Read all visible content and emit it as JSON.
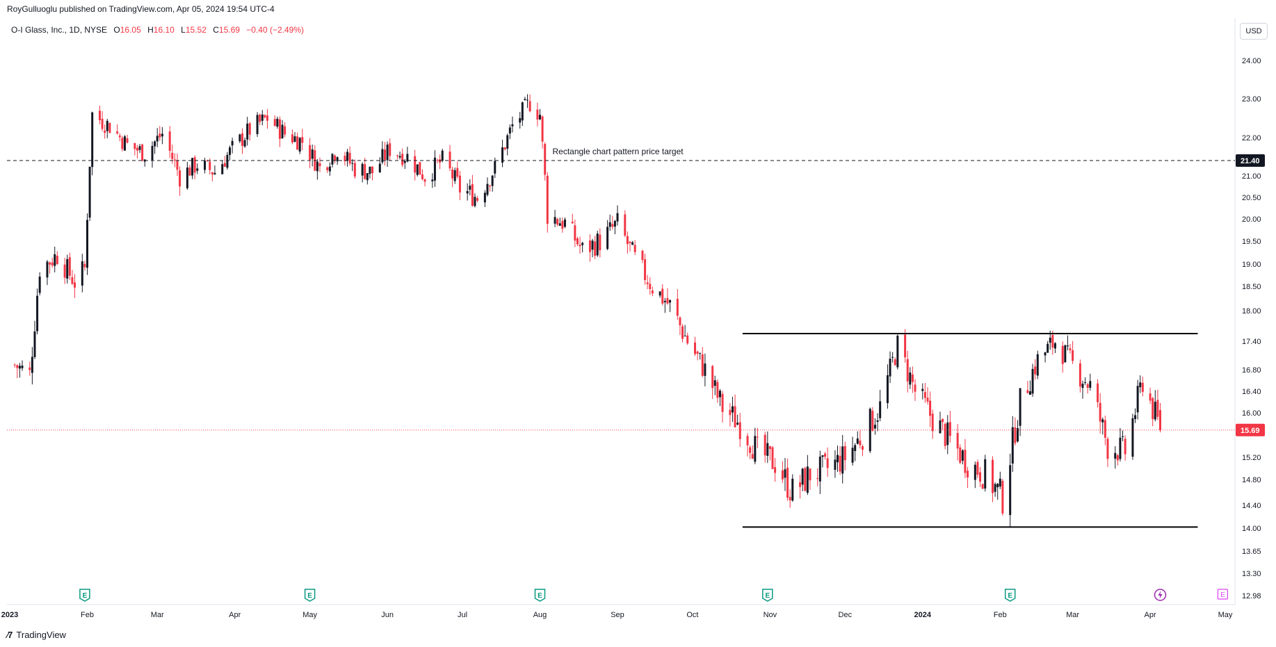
{
  "header": {
    "published": "RoyGulluoglu published on TradingView.com, Apr 05, 2024 19:54 UTC-4"
  },
  "legend": {
    "symbol": "O-I Glass, Inc., 1D, NYSE",
    "o_label": "O",
    "o": "16.05",
    "h_label": "H",
    "h": "16.10",
    "l_label": "L",
    "l": "15.52",
    "c_label": "C",
    "c": "15.69",
    "change": "−0.40 (−2.49%)"
  },
  "currency_button": "USD",
  "footer": {
    "brand": "TradingView"
  },
  "colors": {
    "up": "#131722",
    "down": "#f23645",
    "grid": "#f0f3fa",
    "price_line": "#f23645"
  },
  "icons": [
    "earnings-icon",
    "dividend-lightning-icon",
    "tradingview-logo-icon"
  ],
  "chart_data": {
    "type": "candlestick",
    "y_ticks": [
      "24.00",
      "23.00",
      "22.00",
      "21.00",
      "20.50",
      "20.00",
      "19.50",
      "19.00",
      "18.50",
      "18.00",
      "17.40",
      "16.80",
      "16.40",
      "16.00",
      "15.20",
      "14.80",
      "14.40",
      "14.00",
      "13.65",
      "13.30",
      "12.98"
    ],
    "ylim": [
      12.98,
      24.6
    ],
    "x_ticks": [
      "2023",
      "Feb",
      "Mar",
      "Apr",
      "May",
      "Jun",
      "Jul",
      "Aug",
      "Sep",
      "Oct",
      "Nov",
      "Dec",
      "2024",
      "Feb",
      "Mar",
      "Apr",
      "May"
    ],
    "last_price": "15.69",
    "target_price_label": "21.40",
    "target_price": 21.4,
    "annotation": "Rectangle chart pattern price target",
    "rectangle_top": 17.55,
    "rectangle_bottom": 14.02,
    "earnings_markers": [
      "2023-01-31",
      "2023-05-01",
      "2023-08-01",
      "2023-10-31",
      "2024-02-05"
    ],
    "future_earnings_marker": "2024-04-30",
    "dividend_marker": "2024-04-05",
    "weekly_closes": [
      [
        "2023-01-03",
        16.9
      ],
      [
        "2023-01-09",
        16.7
      ],
      [
        "2023-01-13",
        18.9
      ],
      [
        "2023-01-20",
        19.2
      ],
      [
        "2023-01-27",
        18.6
      ],
      [
        "2023-01-31",
        18.9
      ],
      [
        "2023-02-03",
        22.6
      ],
      [
        "2023-02-10",
        22.3
      ],
      [
        "2023-02-17",
        21.8
      ],
      [
        "2023-02-24",
        21.6
      ],
      [
        "2023-03-03",
        22.1
      ],
      [
        "2023-03-10",
        21.0
      ],
      [
        "2023-03-17",
        21.3
      ],
      [
        "2023-03-24",
        21.1
      ],
      [
        "2023-03-31",
        21.7
      ],
      [
        "2023-04-07",
        22.2
      ],
      [
        "2023-04-14",
        22.5
      ],
      [
        "2023-04-21",
        22.1
      ],
      [
        "2023-04-28",
        21.9
      ],
      [
        "2023-05-05",
        21.2
      ],
      [
        "2023-05-12",
        21.7
      ],
      [
        "2023-05-19",
        21.2
      ],
      [
        "2023-05-26",
        21.1
      ],
      [
        "2023-06-02",
        21.7
      ],
      [
        "2023-06-09",
        21.5
      ],
      [
        "2023-06-16",
        21.0
      ],
      [
        "2023-06-23",
        21.4
      ],
      [
        "2023-06-30",
        20.7
      ],
      [
        "2023-07-07",
        20.5
      ],
      [
        "2023-07-14",
        21.2
      ],
      [
        "2023-07-21",
        22.3
      ],
      [
        "2023-07-28",
        22.9
      ],
      [
        "2023-08-01",
        22.6
      ],
      [
        "2023-08-04",
        20.1
      ],
      [
        "2023-08-11",
        19.9
      ],
      [
        "2023-08-18",
        19.3
      ],
      [
        "2023-08-25",
        19.5
      ],
      [
        "2023-09-01",
        19.9
      ],
      [
        "2023-09-08",
        19.1
      ],
      [
        "2023-09-15",
        18.5
      ],
      [
        "2023-09-22",
        18.1
      ],
      [
        "2023-09-29",
        17.4
      ],
      [
        "2023-10-06",
        16.8
      ],
      [
        "2023-10-13",
        16.1
      ],
      [
        "2023-10-20",
        15.8
      ],
      [
        "2023-10-27",
        15.3
      ],
      [
        "2023-11-03",
        15.1
      ],
      [
        "2023-11-10",
        14.6
      ],
      [
        "2023-11-17",
        14.9
      ],
      [
        "2023-11-24",
        15.0
      ],
      [
        "2023-12-01",
        15.2
      ],
      [
        "2023-12-08",
        15.6
      ],
      [
        "2023-12-15",
        16.1
      ],
      [
        "2023-12-22",
        17.3
      ],
      [
        "2023-12-29",
        16.4
      ],
      [
        "2024-01-05",
        15.9
      ],
      [
        "2024-01-12",
        15.5
      ],
      [
        "2024-01-19",
        15.1
      ],
      [
        "2024-01-26",
        14.9
      ],
      [
        "2024-02-02",
        14.5
      ],
      [
        "2024-02-09",
        16.2
      ],
      [
        "2024-02-16",
        17.0
      ],
      [
        "2024-02-23",
        17.4
      ],
      [
        "2024-03-01",
        16.9
      ],
      [
        "2024-03-08",
        16.5
      ],
      [
        "2024-03-15",
        15.4
      ],
      [
        "2024-03-22",
        15.3
      ],
      [
        "2024-03-29",
        16.6
      ],
      [
        "2024-04-05",
        15.69
      ]
    ]
  }
}
